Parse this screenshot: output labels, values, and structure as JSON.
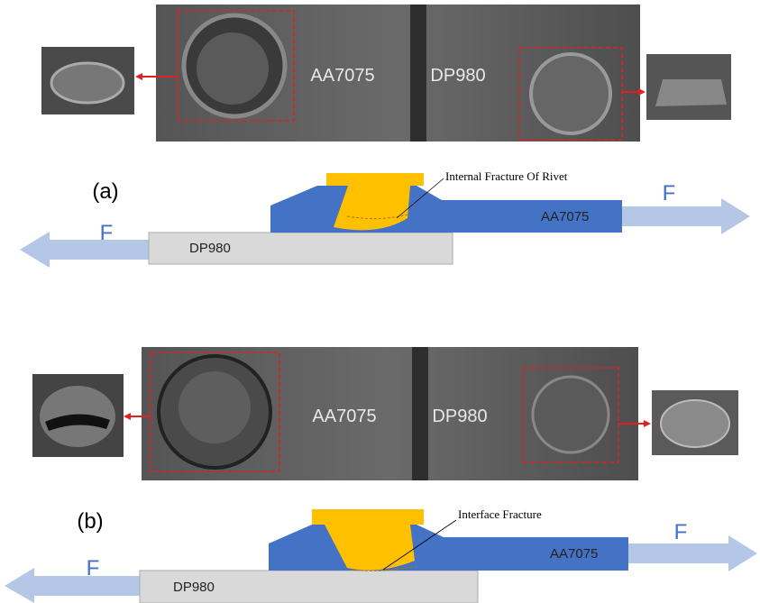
{
  "panels": [
    {
      "label": "(a)",
      "photo": {
        "left_label": "AA7075",
        "right_label": "DP980"
      },
      "schematic": {
        "annotation": "Internal Fracture Of Rivet",
        "top_plate": "AA7075",
        "bottom_plate": "DP980",
        "force_left": "F",
        "force_right": "F"
      }
    },
    {
      "label": "(b)",
      "photo": {
        "left_label": "AA7075",
        "right_label": "DP980"
      },
      "schematic": {
        "annotation": "Interface Fracture",
        "top_plate": "AA7075",
        "bottom_plate": "DP980",
        "force_left": "F",
        "force_right": "F"
      }
    }
  ]
}
